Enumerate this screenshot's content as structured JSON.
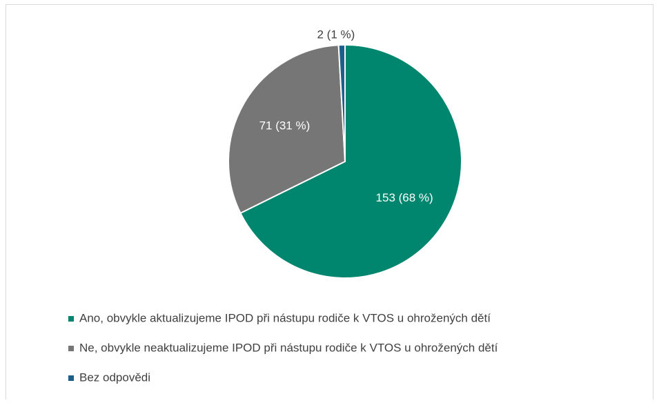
{
  "chart_data": {
    "type": "pie",
    "categories": [
      "Ano, obvykle aktualizujeme IPOD při nástupu rodiče k VTOS u ohrožených dětí",
      "Ne, obvykle neaktualizujeme IPOD při nástupu rodiče k VTOS u ohrožených dětí",
      "Bez odpovědi"
    ],
    "values": [
      153,
      71,
      2
    ],
    "value_labels": [
      "153 (68 %)",
      "71 (31 %)",
      "2 (1 %)"
    ],
    "colors": [
      "#00856f",
      "#767676",
      "#1c5f8a"
    ],
    "legend": "bottom-left"
  }
}
